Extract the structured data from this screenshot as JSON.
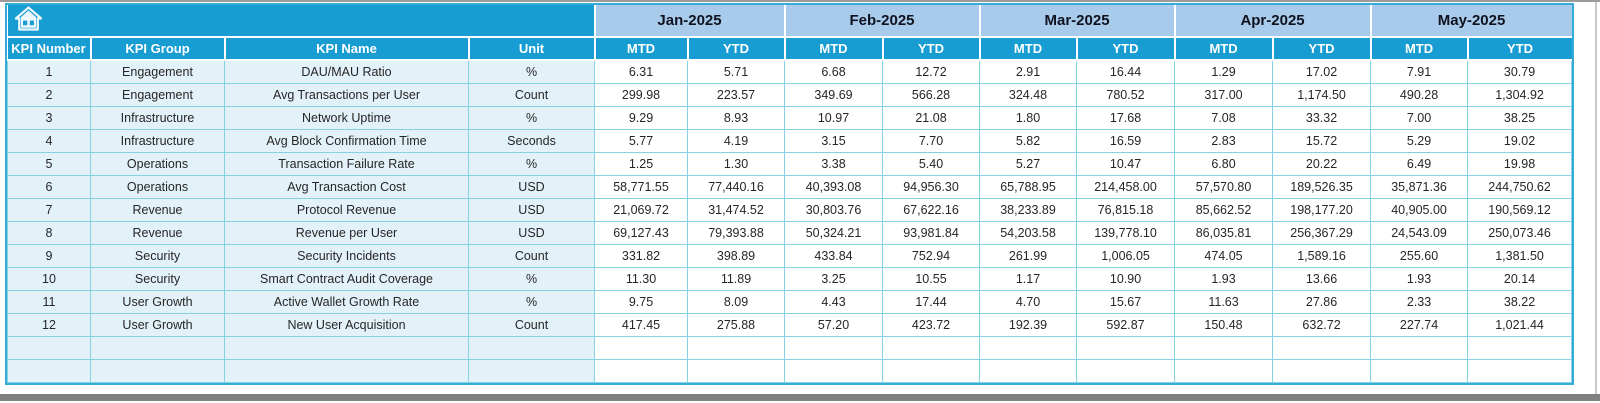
{
  "table": {
    "left_headers": [
      "KPI Number",
      "KPI Group",
      "KPI Name",
      "Unit"
    ],
    "months": [
      "Jan-2025",
      "Feb-2025",
      "Mar-2025",
      "Apr-2025",
      "May-2025"
    ],
    "period_headers": [
      "MTD",
      "YTD"
    ],
    "rows": [
      {
        "number": "1",
        "group": "Engagement",
        "name": "DAU/MAU Ratio",
        "unit": "%",
        "values": [
          "6.31",
          "5.71",
          "6.68",
          "12.72",
          "2.91",
          "16.44",
          "1.29",
          "17.02",
          "7.91",
          "30.79"
        ]
      },
      {
        "number": "2",
        "group": "Engagement",
        "name": "Avg Transactions per User",
        "unit": "Count",
        "values": [
          "299.98",
          "223.57",
          "349.69",
          "566.28",
          "324.48",
          "780.52",
          "317.00",
          "1,174.50",
          "490.28",
          "1,304.92"
        ]
      },
      {
        "number": "3",
        "group": "Infrastructure",
        "name": "Network Uptime",
        "unit": "%",
        "values": [
          "9.29",
          "8.93",
          "10.97",
          "21.08",
          "1.80",
          "17.68",
          "7.08",
          "33.32",
          "7.00",
          "38.25"
        ]
      },
      {
        "number": "4",
        "group": "Infrastructure",
        "name": "Avg Block Confirmation Time",
        "unit": "Seconds",
        "values": [
          "5.77",
          "4.19",
          "3.15",
          "7.70",
          "5.82",
          "16.59",
          "2.83",
          "15.72",
          "5.29",
          "19.02"
        ]
      },
      {
        "number": "5",
        "group": "Operations",
        "name": "Transaction Failure Rate",
        "unit": "%",
        "values": [
          "1.25",
          "1.30",
          "3.38",
          "5.40",
          "5.27",
          "10.47",
          "6.80",
          "20.22",
          "6.49",
          "19.98"
        ]
      },
      {
        "number": "6",
        "group": "Operations",
        "name": "Avg Transaction Cost",
        "unit": "USD",
        "values": [
          "58,771.55",
          "77,440.16",
          "40,393.08",
          "94,956.30",
          "65,788.95",
          "214,458.00",
          "57,570.80",
          "189,526.35",
          "35,871.36",
          "244,750.62"
        ]
      },
      {
        "number": "7",
        "group": "Revenue",
        "name": "Protocol Revenue",
        "unit": "USD",
        "values": [
          "21,069.72",
          "31,474.52",
          "30,803.76",
          "67,622.16",
          "38,233.89",
          "76,815.18",
          "85,662.52",
          "198,177.20",
          "40,905.00",
          "190,569.12"
        ]
      },
      {
        "number": "8",
        "group": "Revenue",
        "name": "Revenue per User",
        "unit": "USD",
        "values": [
          "69,127.43",
          "79,393.88",
          "50,324.21",
          "93,981.84",
          "54,203.58",
          "139,778.10",
          "86,035.81",
          "256,367.29",
          "24,543.09",
          "250,073.46"
        ]
      },
      {
        "number": "9",
        "group": "Security",
        "name": "Security Incidents",
        "unit": "Count",
        "values": [
          "331.82",
          "398.89",
          "433.84",
          "752.94",
          "261.99",
          "1,006.05",
          "474.05",
          "1,589.16",
          "255.60",
          "1,381.50"
        ]
      },
      {
        "number": "10",
        "group": "Security",
        "name": "Smart Contract Audit Coverage",
        "unit": "%",
        "values": [
          "11.30",
          "11.89",
          "3.25",
          "10.55",
          "1.17",
          "10.90",
          "1.93",
          "13.66",
          "1.93",
          "20.14"
        ]
      },
      {
        "number": "11",
        "group": "User Growth",
        "name": "Active Wallet Growth Rate",
        "unit": "%",
        "values": [
          "9.75",
          "8.09",
          "4.43",
          "17.44",
          "4.70",
          "15.67",
          "11.63",
          "27.86",
          "2.33",
          "38.22"
        ]
      },
      {
        "number": "12",
        "group": "User Growth",
        "name": "New User Acquisition",
        "unit": "Count",
        "values": [
          "417.45",
          "275.88",
          "57.20",
          "423.72",
          "192.39",
          "592.87",
          "150.48",
          "632.72",
          "227.74",
          "1,021.44"
        ]
      }
    ],
    "empty_row_count": 2
  },
  "icons": {
    "home": "home-icon"
  },
  "colors": {
    "header_cyan": "#189dd2",
    "month_blue": "#a8cbec",
    "row_light_blue": "#e3f1f9",
    "grid_border": "#86d2e3",
    "frame_border": "#35abd8",
    "text_dark": "#262626"
  }
}
